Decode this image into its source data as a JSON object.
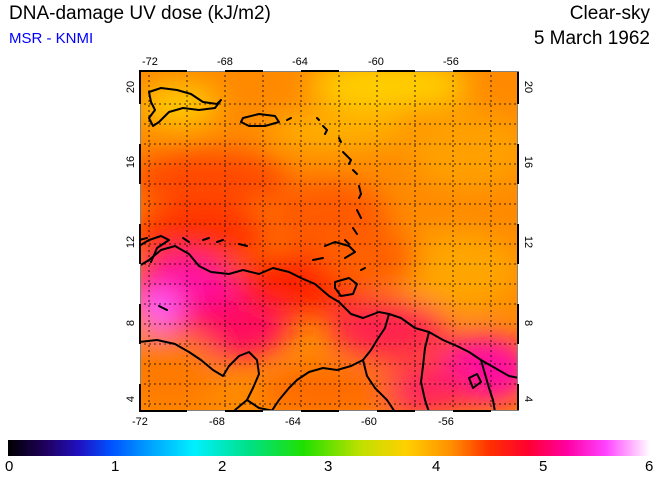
{
  "header": {
    "title": "DNA-damage UV dose (kJ/m2)",
    "subtitle": "MSR - KNMI",
    "condition": "Clear-sky",
    "date": "5 March 1962"
  },
  "map": {
    "lon_ticks": [
      "-72",
      "-68",
      "-64",
      "-60",
      "-56"
    ],
    "lat_ticks": [
      "4",
      "8",
      "12",
      "16",
      "20"
    ],
    "lon_range": [
      -72,
      -52
    ],
    "lat_range": [
      3.5,
      20.5
    ]
  },
  "colorbar": {
    "labels": [
      "0",
      "1",
      "2",
      "3",
      "4",
      "5",
      "6"
    ],
    "range": [
      0,
      6
    ]
  },
  "colors": {
    "title": "#000000",
    "subtitle": "#0000ff",
    "coast": "#000000",
    "grid": "#000000"
  }
}
